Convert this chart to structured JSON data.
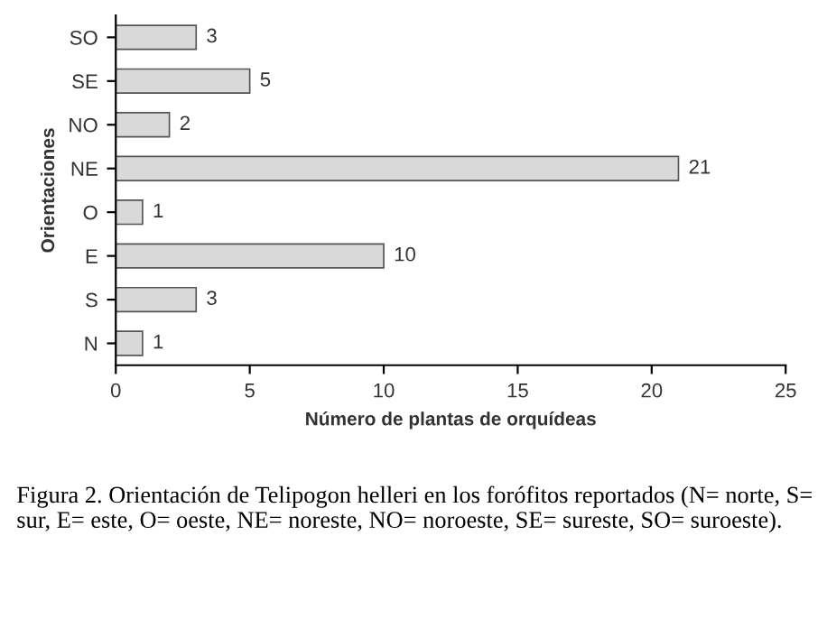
{
  "chart_data": {
    "type": "bar",
    "orientation": "horizontal",
    "categories": [
      "SO",
      "SE",
      "NO",
      "NE",
      "O",
      "E",
      "S",
      "N"
    ],
    "values": [
      3,
      5,
      2,
      21,
      1,
      10,
      3,
      1
    ],
    "color": "#d9d9d9",
    "data_labels": true,
    "xlabel": "Número de plantas de orquídeas",
    "ylabel": "Orientaciones",
    "xlim": [
      0,
      25
    ],
    "xticks": [
      0,
      5,
      10,
      15,
      20,
      25
    ],
    "grid": false,
    "annotations": [
      "Figura 2. Orientación de Telipogon helleri en los forófitos reportados (N= norte, S= sur, E= este, O= oeste, NE= noreste, NO= noroeste, SE= sureste, SO= suroeste)."
    ]
  }
}
